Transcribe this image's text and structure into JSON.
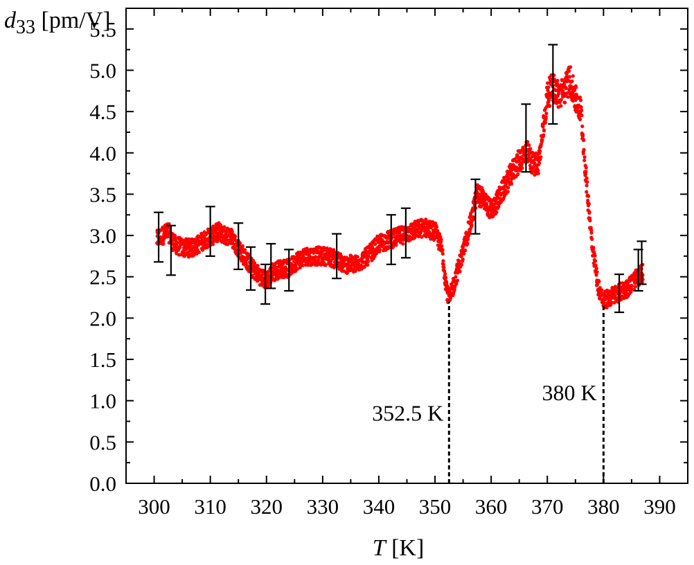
{
  "chart_data": {
    "type": "scatter",
    "ylabel_var": "d",
    "ylabel_sub": "33",
    "ylabel_unit": " [pm/V]",
    "xlabel_var": "T",
    "xlabel_unit": " [K]",
    "xlim": [
      295,
      395
    ],
    "ylim": [
      0,
      5.75
    ],
    "x_ticks": [
      300,
      310,
      320,
      330,
      340,
      350,
      360,
      370,
      380,
      390
    ],
    "y_ticks": [
      0.0,
      0.5,
      1.0,
      1.5,
      2.0,
      2.5,
      3.0,
      3.5,
      4.0,
      4.5,
      5.0,
      5.5
    ],
    "x_tick_labels": [
      "300",
      "310",
      "320",
      "330",
      "340",
      "350",
      "360",
      "370",
      "380",
      "390"
    ],
    "y_tick_labels": [
      "0.0",
      "0.5",
      "1.0",
      "1.5",
      "2.0",
      "2.5",
      "3.0",
      "3.5",
      "4.0",
      "4.5",
      "5.0",
      "5.5"
    ],
    "marker_color": "#ff0000",
    "grid": false,
    "trend": [
      [
        300.5,
        2.95
      ],
      [
        301.5,
        3.0
      ],
      [
        302.5,
        3.05
      ],
      [
        303.5,
        2.9
      ],
      [
        305,
        2.85
      ],
      [
        307,
        2.85
      ],
      [
        309,
        2.95
      ],
      [
        310.5,
        3.0
      ],
      [
        311.5,
        3.05
      ],
      [
        312.5,
        3.0
      ],
      [
        313.5,
        3.0
      ],
      [
        315,
        2.85
      ],
      [
        316.5,
        2.7
      ],
      [
        317.5,
        2.6
      ],
      [
        319,
        2.5
      ],
      [
        320,
        2.45
      ],
      [
        321,
        2.55
      ],
      [
        322.5,
        2.6
      ],
      [
        324,
        2.6
      ],
      [
        325.5,
        2.7
      ],
      [
        327,
        2.75
      ],
      [
        329,
        2.75
      ],
      [
        331,
        2.75
      ],
      [
        332.5,
        2.7
      ],
      [
        334,
        2.65
      ],
      [
        336,
        2.65
      ],
      [
        338,
        2.75
      ],
      [
        340,
        2.9
      ],
      [
        342,
        2.95
      ],
      [
        344,
        3.0
      ],
      [
        346,
        3.05
      ],
      [
        348,
        3.1
      ],
      [
        350,
        3.05
      ],
      [
        351.2,
        2.85
      ],
      [
        352,
        2.4
      ],
      [
        352.5,
        2.2
      ],
      [
        353.5,
        2.45
      ],
      [
        355,
        2.8
      ],
      [
        356.5,
        3.2
      ],
      [
        357.5,
        3.5
      ],
      [
        358.5,
        3.45
      ],
      [
        360,
        3.3
      ],
      [
        361,
        3.4
      ],
      [
        362.5,
        3.6
      ],
      [
        364,
        3.8
      ],
      [
        365.5,
        3.95
      ],
      [
        366.5,
        4.0
      ],
      [
        367.5,
        3.85
      ],
      [
        368.5,
        3.9
      ],
      [
        369.3,
        4.3
      ],
      [
        370,
        4.7
      ],
      [
        371,
        4.8
      ],
      [
        372,
        4.7
      ],
      [
        373,
        4.75
      ],
      [
        374,
        4.9
      ],
      [
        375,
        4.65
      ],
      [
        376,
        4.5
      ],
      [
        377,
        3.6
      ],
      [
        378,
        2.9
      ],
      [
        379,
        2.4
      ],
      [
        380,
        2.2
      ],
      [
        381,
        2.25
      ],
      [
        382.5,
        2.3
      ],
      [
        384,
        2.35
      ],
      [
        385.5,
        2.45
      ],
      [
        387,
        2.55
      ]
    ],
    "error_bars": [
      {
        "x": 300.8,
        "y": 2.98,
        "err": 0.3
      },
      {
        "x": 303.0,
        "y": 2.82,
        "err": 0.3
      },
      {
        "x": 310.0,
        "y": 3.05,
        "err": 0.3
      },
      {
        "x": 315.0,
        "y": 2.87,
        "err": 0.28
      },
      {
        "x": 317.2,
        "y": 2.6,
        "err": 0.26
      },
      {
        "x": 319.8,
        "y": 2.41,
        "err": 0.24
      },
      {
        "x": 320.8,
        "y": 2.63,
        "err": 0.27
      },
      {
        "x": 324.0,
        "y": 2.58,
        "err": 0.25
      },
      {
        "x": 332.5,
        "y": 2.75,
        "err": 0.27
      },
      {
        "x": 342.2,
        "y": 2.95,
        "err": 0.3
      },
      {
        "x": 344.8,
        "y": 3.03,
        "err": 0.3
      },
      {
        "x": 357.2,
        "y": 3.35,
        "err": 0.33
      },
      {
        "x": 366.2,
        "y": 4.18,
        "err": 0.41
      },
      {
        "x": 371.0,
        "y": 4.83,
        "err": 0.48
      },
      {
        "x": 382.8,
        "y": 2.3,
        "err": 0.23
      },
      {
        "x": 386.2,
        "y": 2.58,
        "err": 0.25
      },
      {
        "x": 386.8,
        "y": 2.67,
        "err": 0.26
      }
    ],
    "annotations": [
      {
        "text": "352.5 K",
        "x": 352.5,
        "y_min": 0,
        "y_max": 2.2,
        "text_anchor": "end",
        "text_x": 351.5,
        "text_y": 0.85
      },
      {
        "text": "380 K",
        "x": 380.0,
        "y_min": 0,
        "y_max": 2.15,
        "text_anchor": "end",
        "text_x": 378.8,
        "text_y": 1.1
      }
    ]
  }
}
